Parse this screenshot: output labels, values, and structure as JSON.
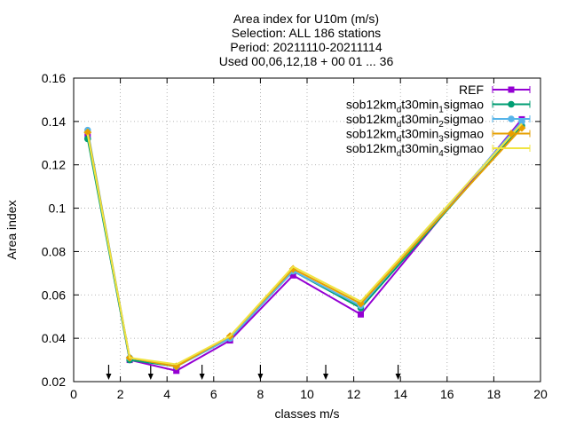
{
  "chart_data": {
    "type": "line",
    "title_lines": [
      "Area index  for U10m (m/s)",
      "Selection: ALL    186 stations",
      "Period: 20211110-20211114",
      "Used 00,06,12,18 + 00 01 ... 36"
    ],
    "xlabel": "classes m/s",
    "ylabel": "Area index",
    "xlim": [
      0,
      20
    ],
    "ylim": [
      0.02,
      0.16
    ],
    "xticks": [
      0,
      2,
      4,
      6,
      8,
      10,
      12,
      14,
      16,
      18,
      20
    ],
    "yticks": [
      0.02,
      0.04,
      0.06,
      0.08,
      0.1,
      0.12,
      0.14,
      0.16
    ],
    "ytick_labels": [
      "0.02",
      "0.04",
      "0.06",
      "0.08",
      "0.1",
      "0.12",
      "0.14",
      "0.16"
    ],
    "grid": true,
    "legend_position": "top-right",
    "x": [
      0.6,
      2.4,
      4.4,
      6.7,
      9.4,
      12.3,
      19.2
    ],
    "series": [
      {
        "name": "REF",
        "name_parts": [
          [
            "REF",
            "n"
          ]
        ],
        "color": "#9400d3",
        "marker": "square",
        "values": [
          0.133,
          0.03,
          0.025,
          0.039,
          0.069,
          0.051,
          0.141
        ]
      },
      {
        "name": "sob12km_dt30min_1sigmao",
        "name_parts": [
          [
            "sob12km",
            "n"
          ],
          [
            "d",
            "sub"
          ],
          [
            "t30min",
            "n"
          ],
          [
            "1",
            "sub"
          ],
          [
            "sigmao",
            "n"
          ]
        ],
        "color": "#009e73",
        "marker": "circle",
        "values": [
          0.132,
          0.03,
          0.027,
          0.04,
          0.071,
          0.054,
          0.138
        ]
      },
      {
        "name": "sob12km_dt30min_2sigmao",
        "name_parts": [
          [
            "sob12km",
            "n"
          ],
          [
            "d",
            "sub"
          ],
          [
            "t30min",
            "n"
          ],
          [
            "2",
            "sub"
          ],
          [
            "sigmao",
            "n"
          ]
        ],
        "color": "#56b4e9",
        "marker": "circle",
        "values": [
          0.136,
          0.031,
          0.027,
          0.04,
          0.071,
          0.055,
          0.14
        ]
      },
      {
        "name": "sob12km_dt30min_3sigmao",
        "name_parts": [
          [
            "sob12km",
            "n"
          ],
          [
            "d",
            "sub"
          ],
          [
            "t30min",
            "n"
          ],
          [
            "3",
            "sub"
          ],
          [
            "sigmao",
            "n"
          ]
        ],
        "color": "#e69f00",
        "marker": "diamond",
        "values": [
          0.135,
          0.031,
          0.027,
          0.041,
          0.072,
          0.056,
          0.137
        ]
      },
      {
        "name": "sob12km_dt30min_4sigmao",
        "name_parts": [
          [
            "sob12km",
            "n"
          ],
          [
            "d",
            "sub"
          ],
          [
            "t30min",
            "n"
          ],
          [
            "4",
            "sub"
          ],
          [
            "sigmao",
            "n"
          ]
        ],
        "color": "#f0e442",
        "marker": "none",
        "values": [
          0.134,
          0.031,
          0.028,
          0.041,
          0.073,
          0.057,
          0.139
        ]
      }
    ],
    "class_boundaries": [
      1.5,
      3.3,
      5.5,
      8.0,
      10.8,
      13.9
    ]
  }
}
